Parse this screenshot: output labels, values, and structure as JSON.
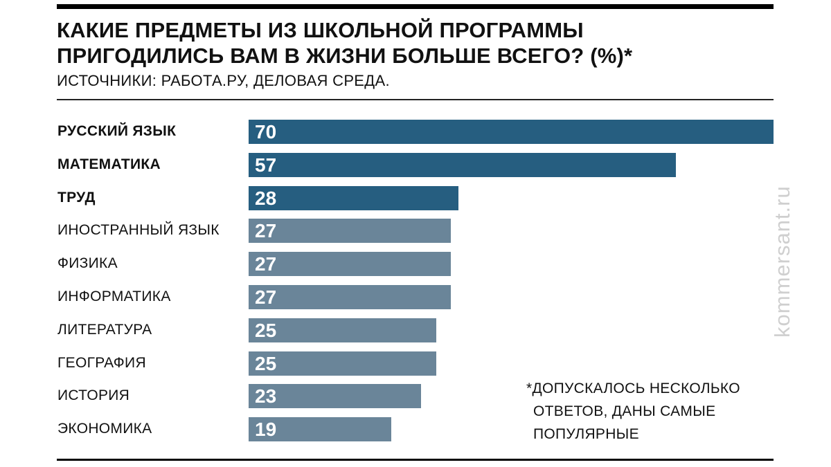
{
  "chart_data": {
    "type": "bar",
    "orientation": "horizontal",
    "title": "КАКИЕ ПРЕДМЕТЫ ИЗ ШКОЛЬНОЙ ПРОГРАММЫ ПРИГОДИЛИСЬ ВАМ В ЖИЗНИ БОЛЬШЕ ВСЕГО? (%)*",
    "title_lines": [
      "КАКИЕ ПРЕДМЕТЫ ИЗ ШКОЛЬНОЙ ПРОГРАММЫ",
      "ПРИГОДИЛИСЬ ВАМ В ЖИЗНИ БОЛЬШЕ ВСЕГО? (%)*"
    ],
    "subtitle": "ИСТОЧНИКИ: РАБОТА.РУ, ДЕЛОВАЯ СРЕДА.",
    "categories": [
      "РУССКИЙ ЯЗЫК",
      "МАТЕМАТИКА",
      "ТРУД",
      "ИНОСТРАННЫЙ ЯЗЫК",
      "ФИЗИКА",
      "ИНФОРМАТИКА",
      "ЛИТЕРАТУРА",
      "ГЕОГРАФИЯ",
      "ИСТОРИЯ",
      "ЭКОНОМИКА"
    ],
    "values": [
      70,
      57,
      28,
      27,
      27,
      27,
      25,
      25,
      23,
      19
    ],
    "highlighted": [
      true,
      true,
      true,
      false,
      false,
      false,
      false,
      false,
      false,
      false
    ],
    "xlim": [
      0,
      70
    ],
    "grid": false,
    "xlabel": "",
    "ylabel": "",
    "note_lines": [
      "*ДОПУСКАЛОСЬ НЕСКОЛЬКО",
      "ОТВЕТОВ, ДАНЫ САМЫЕ",
      "ПОПУЛЯРНЫЕ"
    ],
    "watermark": "kommersant.ru",
    "colors": {
      "highlight": "#265e80",
      "normal": "#6a8599"
    }
  }
}
